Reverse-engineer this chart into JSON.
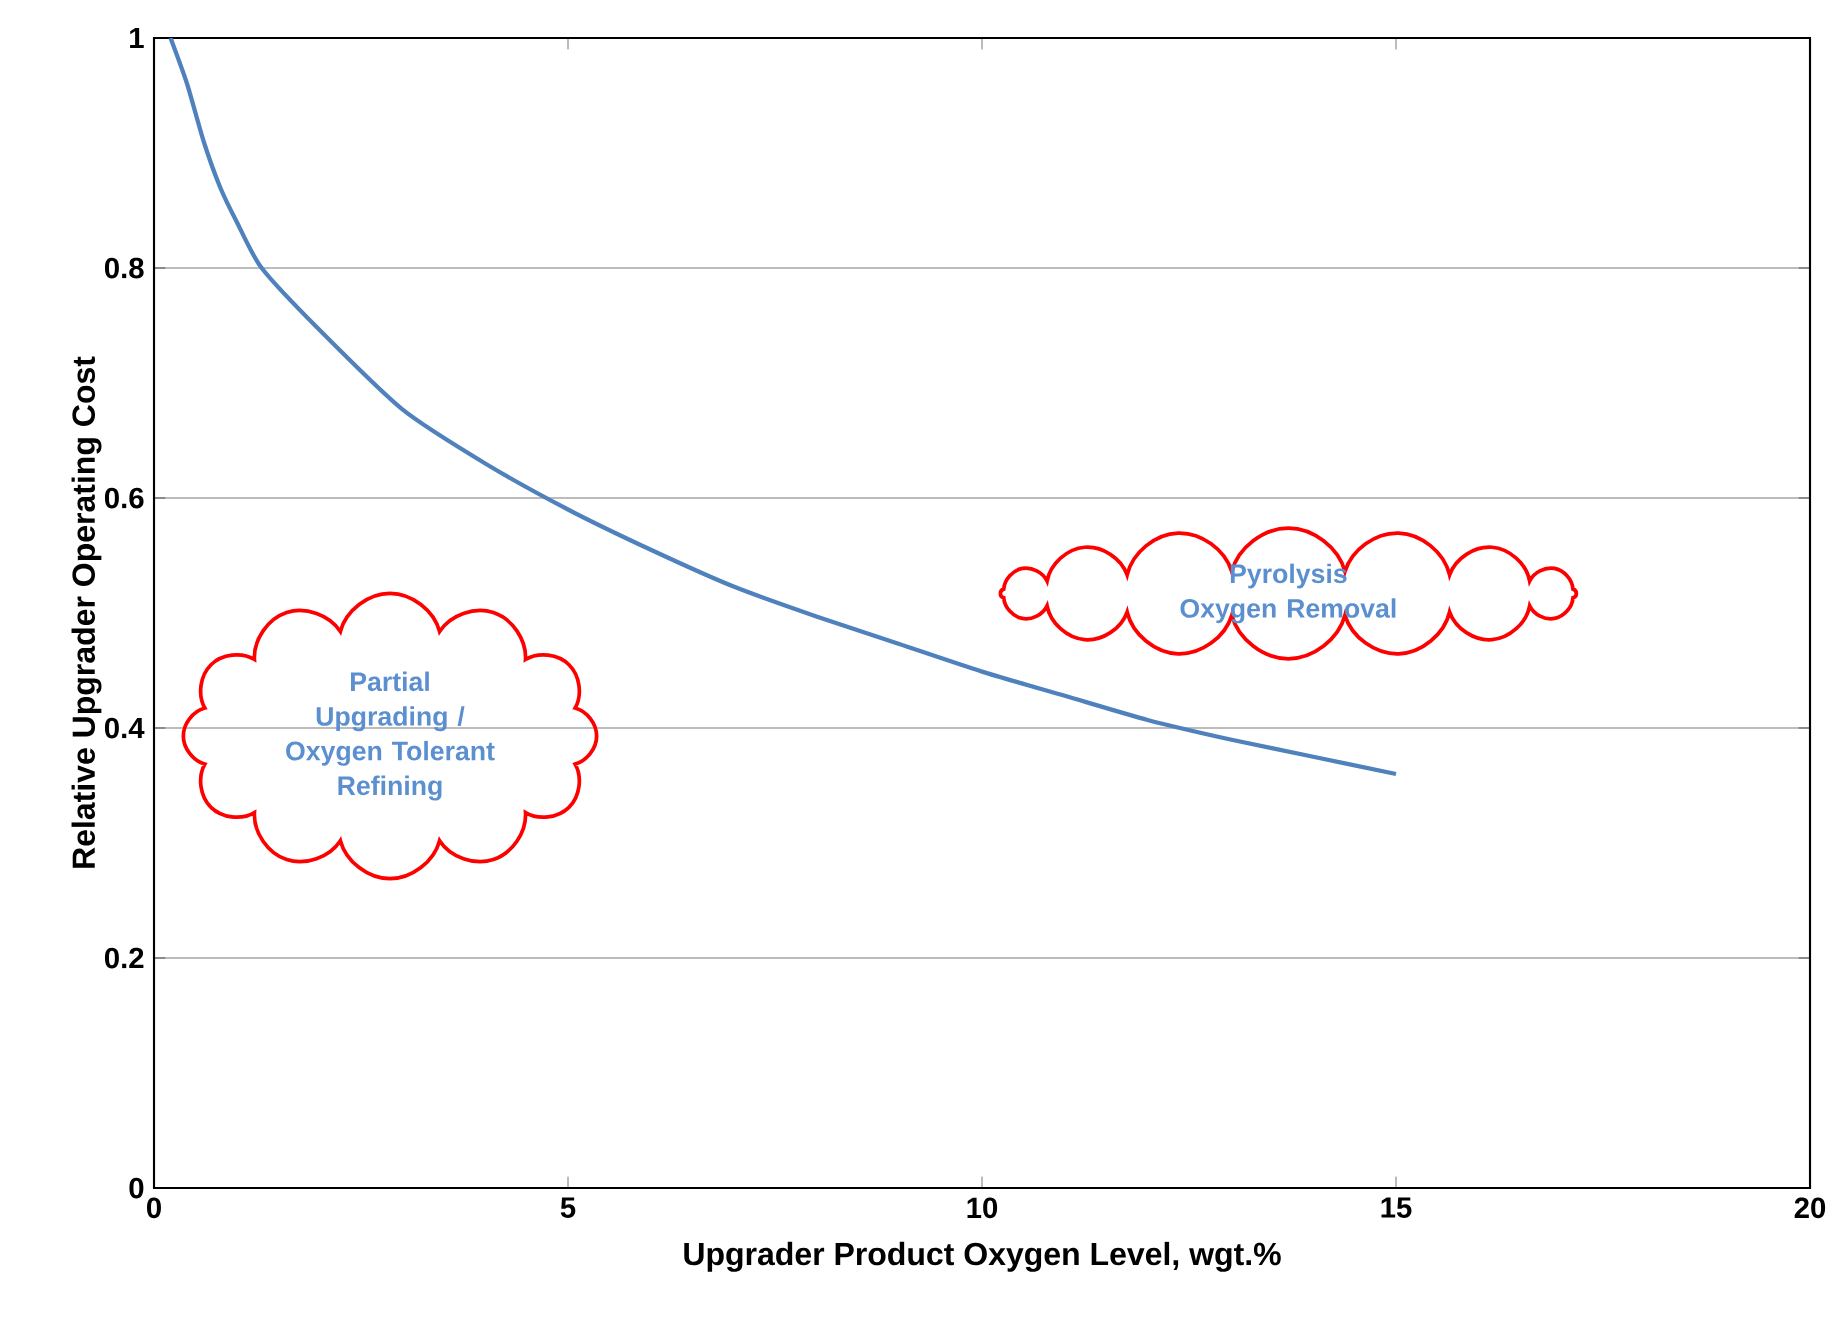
{
  "chart_data": {
    "type": "line",
    "xlabel": "Upgrader Product Oxygen Level, wgt.%",
    "ylabel": "Relative Upgrader Operating Cost",
    "xlim": [
      0,
      20
    ],
    "ylim": [
      0,
      1
    ],
    "xticks": [
      0,
      5,
      10,
      15,
      20
    ],
    "yticks": [
      0,
      0.2,
      0.4,
      0.6,
      0.8,
      1
    ],
    "grid": "y",
    "series": [
      {
        "color": "#4f81bd",
        "x": [
          0.2,
          0.4,
          0.6,
          0.8,
          1.0,
          1.3,
          2,
          3,
          4,
          5,
          6,
          7,
          8,
          9,
          10,
          11,
          12,
          13,
          14,
          15
        ],
        "values": [
          1.0,
          0.96,
          0.91,
          0.87,
          0.84,
          0.8,
          0.746,
          0.677,
          0.63,
          0.59,
          0.555,
          0.523,
          0.497,
          0.473,
          0.449,
          0.428,
          0.407,
          0.39,
          0.375,
          0.36
        ]
      }
    ],
    "annotations": [
      "Partial Upgrading / Oxygen Tolerant Refining",
      "Pyrolysis Oxygen Removal"
    ]
  }
}
